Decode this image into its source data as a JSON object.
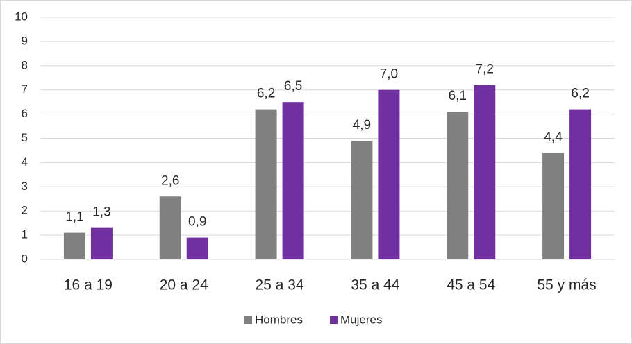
{
  "chart_data": {
    "type": "bar",
    "categories": [
      "16 a 19",
      "20 a 24",
      "25 a 34",
      "35 a 44",
      "45 a 54",
      "55 y más"
    ],
    "series": [
      {
        "name": "Hombres",
        "color": "#808080",
        "values": [
          1.1,
          2.6,
          6.2,
          4.9,
          6.1,
          4.4
        ],
        "value_labels": [
          "1,1",
          "2,6",
          "6,2",
          "4,9",
          "6,1",
          "4,4"
        ]
      },
      {
        "name": "Mujeres",
        "color": "#7030a0",
        "values": [
          1.3,
          0.9,
          6.5,
          7.0,
          7.2,
          6.2
        ],
        "value_labels": [
          "1,3",
          "0,9",
          "6,5",
          "7,0",
          "7,2",
          "6,2"
        ]
      }
    ],
    "ylim": [
      0,
      10
    ],
    "yticks": [
      0,
      1,
      2,
      3,
      4,
      5,
      6,
      7,
      8,
      9,
      10
    ],
    "grid": true,
    "legend": "bottom"
  }
}
